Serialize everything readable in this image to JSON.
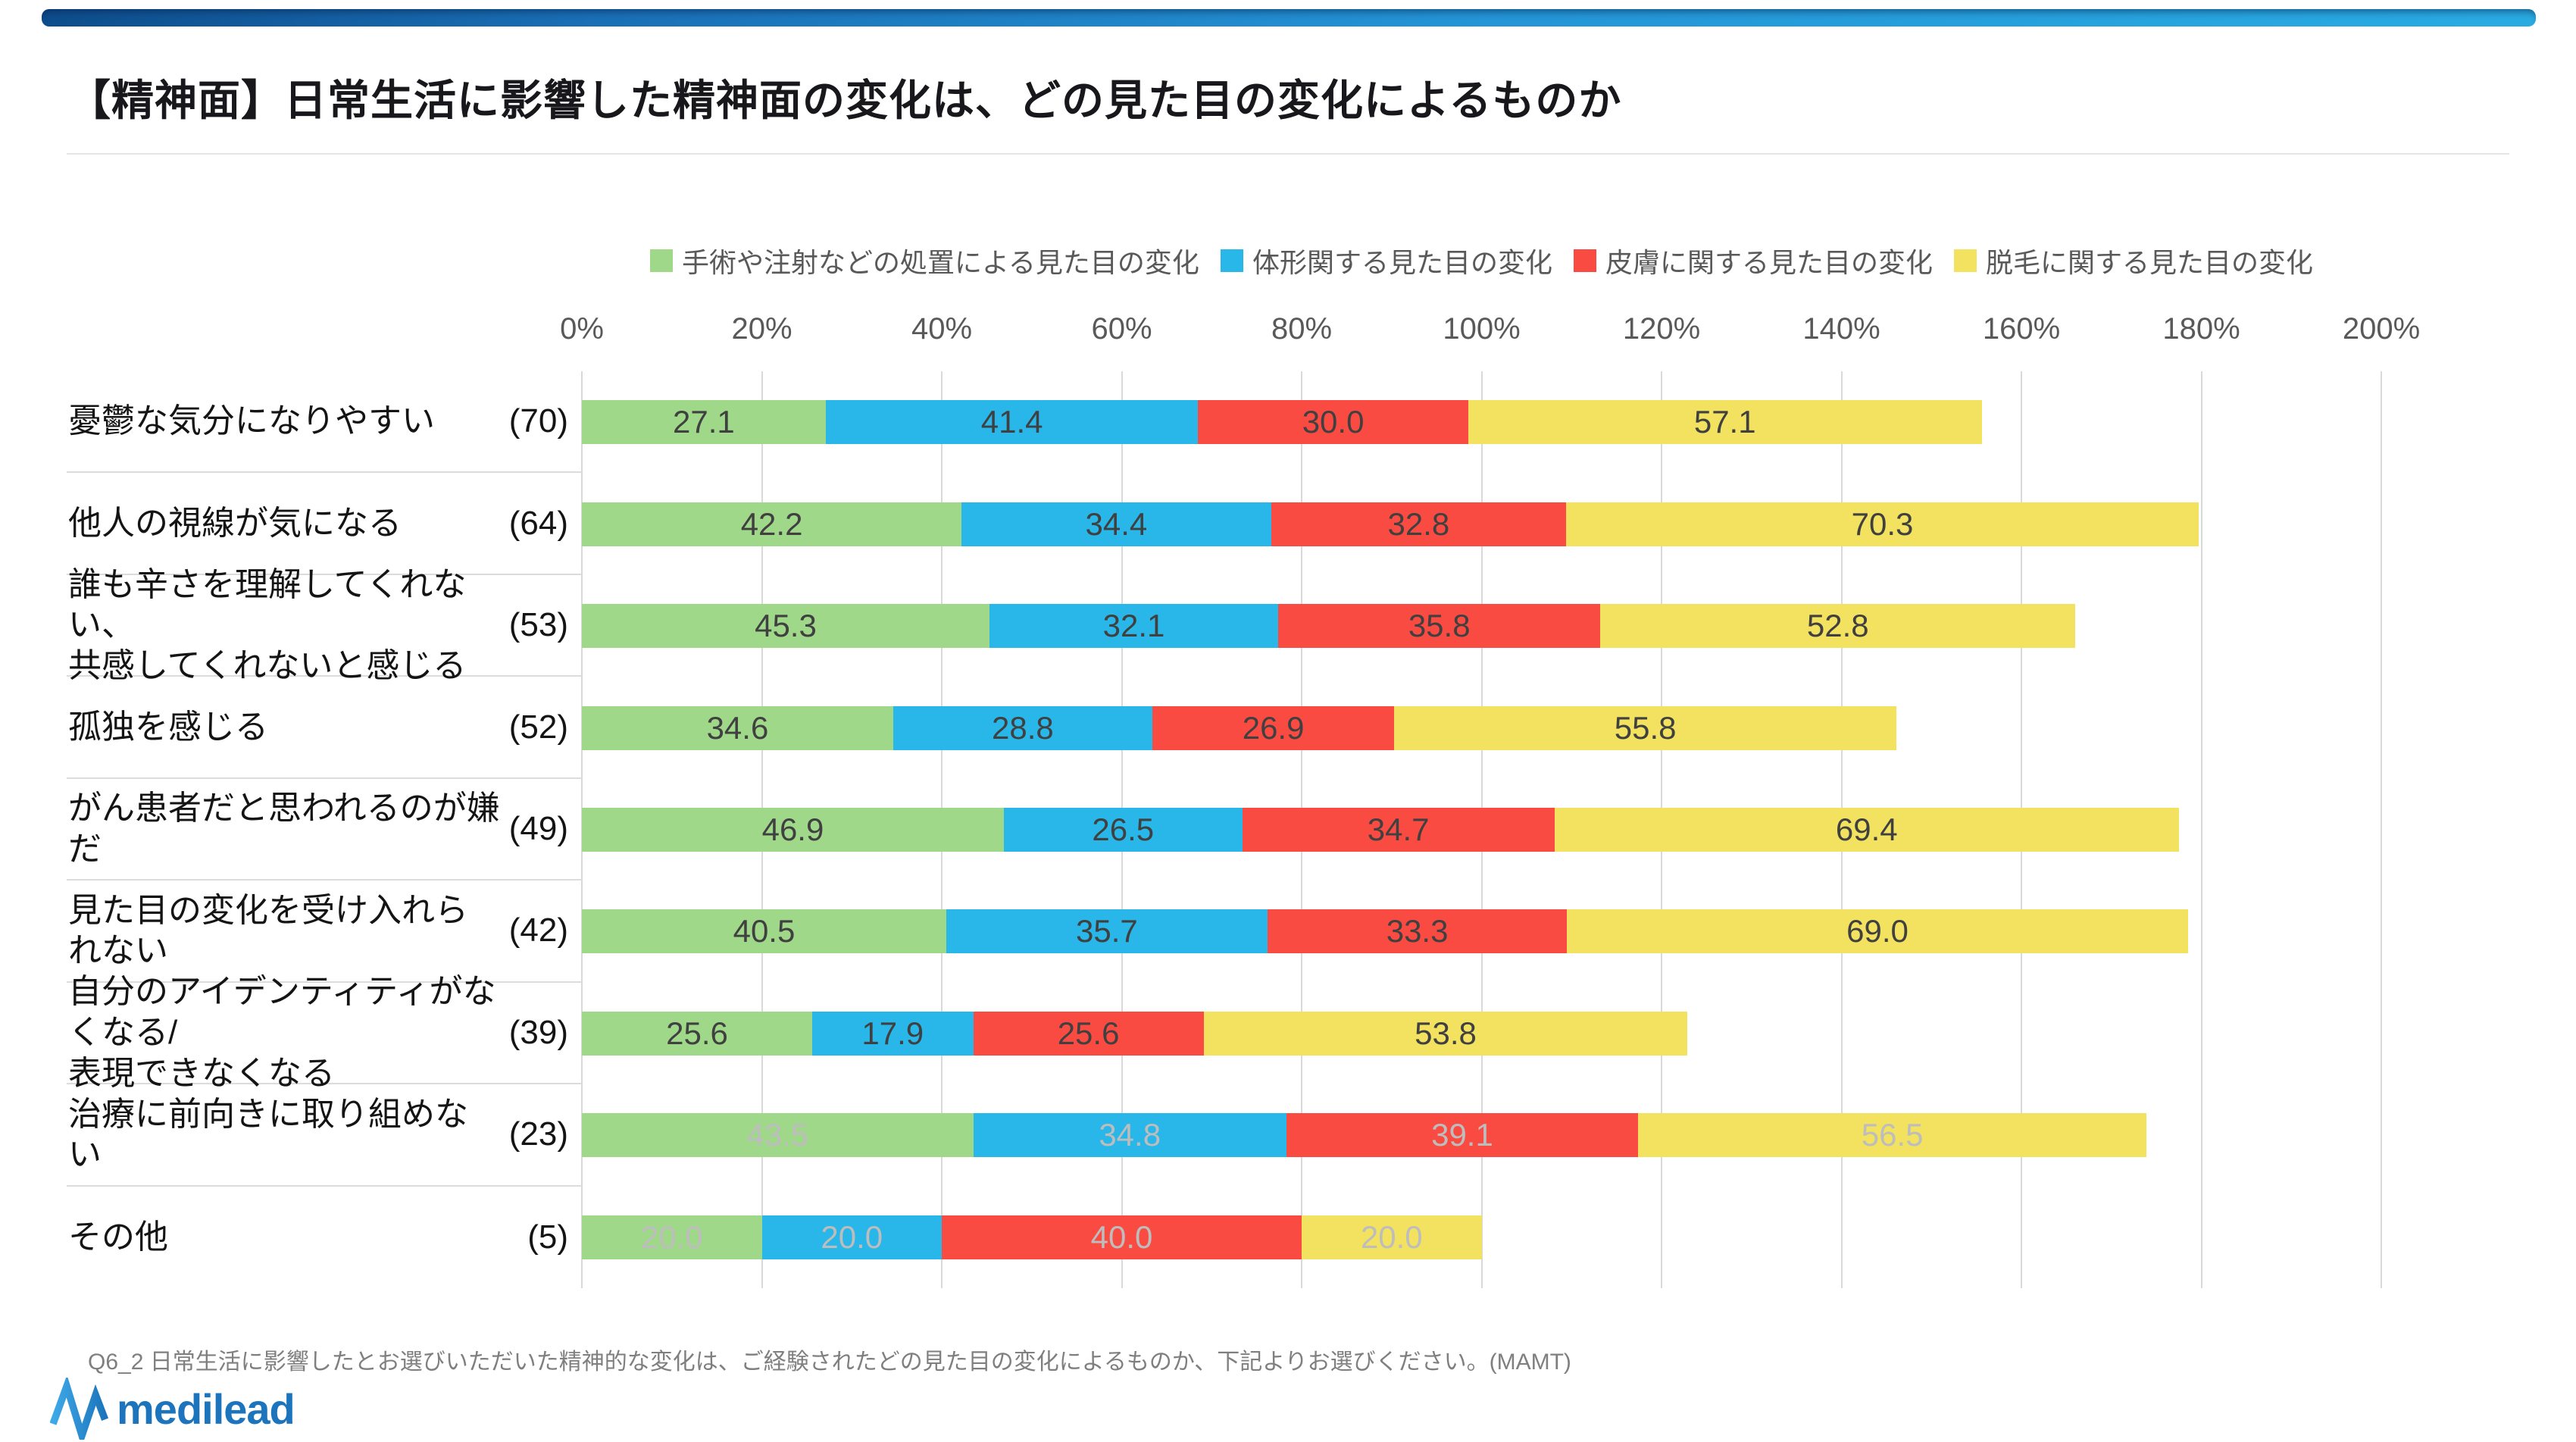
{
  "page": {
    "title": "【精神面】日常生活に影響した精神面の変化は、どの見た目の変化によるものか",
    "footer_note": "Q6_2 日常生活に影響したとお選びいただいた精神的な変化は、ご経験されたどの見た目の変化によるものか、下記よりお選びください。(MAMT)",
    "logo_text": "medilead"
  },
  "colors": {
    "topbar_gradient_left": "#0E4D8C",
    "topbar_gradient_right": "#29ABE2",
    "grid_line": "#D9D9D9",
    "separator_line": "#DCDCDC",
    "axis_text": "#595959",
    "legend_text": "#595959",
    "category_text": "#141414",
    "value_text_dark": "#404040",
    "value_text_muted": "#BDBDBD",
    "footer_text": "#7F7F7F",
    "logo_blue": "#1C75BC"
  },
  "chart_data": {
    "type": "bar",
    "stacked": true,
    "orientation": "horizontal",
    "title": "【精神面】日常生活に影響した精神面の変化は、どの見た目の変化によるものか",
    "legend_position": "top",
    "grid": true,
    "x_axis": {
      "min": 0,
      "max": 200,
      "step": 20,
      "unit": "%",
      "tick_labels": [
        "0%",
        "20%",
        "40%",
        "60%",
        "80%",
        "100%",
        "120%",
        "140%",
        "160%",
        "180%",
        "200%"
      ]
    },
    "series": [
      {
        "name": "手術や注射などの処置による見た目の変化",
        "color": "#A0D88A",
        "values": [
          27.1,
          42.2,
          45.3,
          34.6,
          46.9,
          40.5,
          25.6,
          43.5,
          20.0
        ]
      },
      {
        "name": "体形関する見た目の変化",
        "color": "#29B6E8",
        "values": [
          41.4,
          34.4,
          32.1,
          28.8,
          26.5,
          35.7,
          17.9,
          34.8,
          20.0
        ]
      },
      {
        "name": "皮膚に関する見た目の変化",
        "color": "#FA4B42",
        "values": [
          30.0,
          32.8,
          35.8,
          26.9,
          34.7,
          33.3,
          25.6,
          39.1,
          40.0
        ]
      },
      {
        "name": "脱毛に関する見た目の変化",
        "color": "#F2E25F",
        "values": [
          57.1,
          70.3,
          52.8,
          55.8,
          69.4,
          69.0,
          53.8,
          56.5,
          20.0
        ]
      }
    ],
    "categories": [
      {
        "label_lines": [
          "憂鬱な気分になりやすい"
        ],
        "n_label": "(70)",
        "muted_values": false
      },
      {
        "label_lines": [
          "他人の視線が気になる"
        ],
        "n_label": "(64)",
        "muted_values": false
      },
      {
        "label_lines": [
          "誰も辛さを理解してくれない、",
          "共感してくれないと感じる"
        ],
        "n_label": "(53)",
        "muted_values": false
      },
      {
        "label_lines": [
          "孤独を感じる"
        ],
        "n_label": "(52)",
        "muted_values": false
      },
      {
        "label_lines": [
          "がん患者だと思われるのが嫌だ"
        ],
        "n_label": "(49)",
        "muted_values": false
      },
      {
        "label_lines": [
          "見た目の変化を受け入れられない"
        ],
        "n_label": "(42)",
        "muted_values": false
      },
      {
        "label_lines": [
          "自分のアイデンティティがなくなる/",
          "表現できなくなる"
        ],
        "n_label": "(39)",
        "muted_values": false
      },
      {
        "label_lines": [
          "治療に前向きに取り組めない"
        ],
        "n_label": "(23)",
        "muted_values": true
      },
      {
        "label_lines": [
          "その他"
        ],
        "n_label": "(5)",
        "muted_values": true
      }
    ]
  }
}
